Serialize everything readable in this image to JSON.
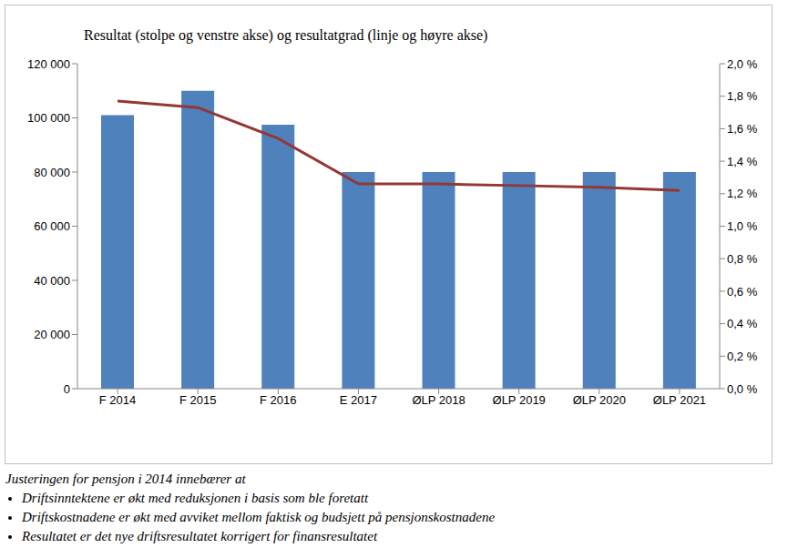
{
  "chart_data": {
    "type": "bar",
    "title": "Resultat (stolpe og venstre akse) og resultatgrad (linje og høyre akse)",
    "categories": [
      "F 2014",
      "F 2015",
      "F 2016",
      "E 2017",
      "ØLP 2018",
      "ØLP 2019",
      "ØLP 2020",
      "ØLP 2021"
    ],
    "series": [
      {
        "name": "Resultat",
        "type": "bar",
        "color": "#4f81bd",
        "values": [
          101000,
          110000,
          97500,
          80000,
          80000,
          80000,
          80000,
          80000
        ]
      },
      {
        "name": "Resultatgrad",
        "type": "line",
        "axis": "y2",
        "color": "#953735",
        "values": [
          1.77,
          1.73,
          1.54,
          1.26,
          1.26,
          1.25,
          1.24,
          1.22
        ]
      }
    ],
    "ylim": [
      0,
      120000
    ],
    "yticks": [
      0,
      {
        "value": 20000,
        "label": "20 000"
      },
      {
        "value": 40000,
        "label": "40 000"
      },
      {
        "value": 60000,
        "label": "60 000"
      },
      {
        "value": 80000,
        "label": "80 000"
      },
      {
        "value": 100000,
        "label": "100 000"
      },
      {
        "value": 120000,
        "label": "120 000"
      }
    ],
    "y2lim": [
      0,
      2
    ],
    "y2ticks": [
      {
        "value": 0,
        "label": "0,0 %"
      },
      {
        "value": 0.2,
        "label": "0,2 %"
      },
      {
        "value": 0.4,
        "label": "0,4 %"
      },
      {
        "value": 0.6,
        "label": "0,6 %"
      },
      {
        "value": 0.8,
        "label": "0,8 %"
      },
      {
        "value": 1,
        "label": "1,0 %"
      },
      {
        "value": 1.2,
        "label": "1,2 %"
      },
      {
        "value": 1.4,
        "label": "1,4 %"
      },
      {
        "value": 1.6,
        "label": "1,6 %"
      },
      {
        "value": 1.8,
        "label": "1,8 %"
      },
      {
        "value": 2,
        "label": "2,0 %"
      }
    ],
    "grid": false,
    "annotations": [
      "Justeringen for pensjon i 2014 innebærer at",
      "Driftsinntektene er økt med reduksjonen i basis som ble foretatt",
      "Driftskostnadene er økt med avviket mellom faktisk og budsjett på pensjonskostnadene",
      "Resultatet er det nye driftsresultatet korrigert for finansresultatet"
    ]
  }
}
